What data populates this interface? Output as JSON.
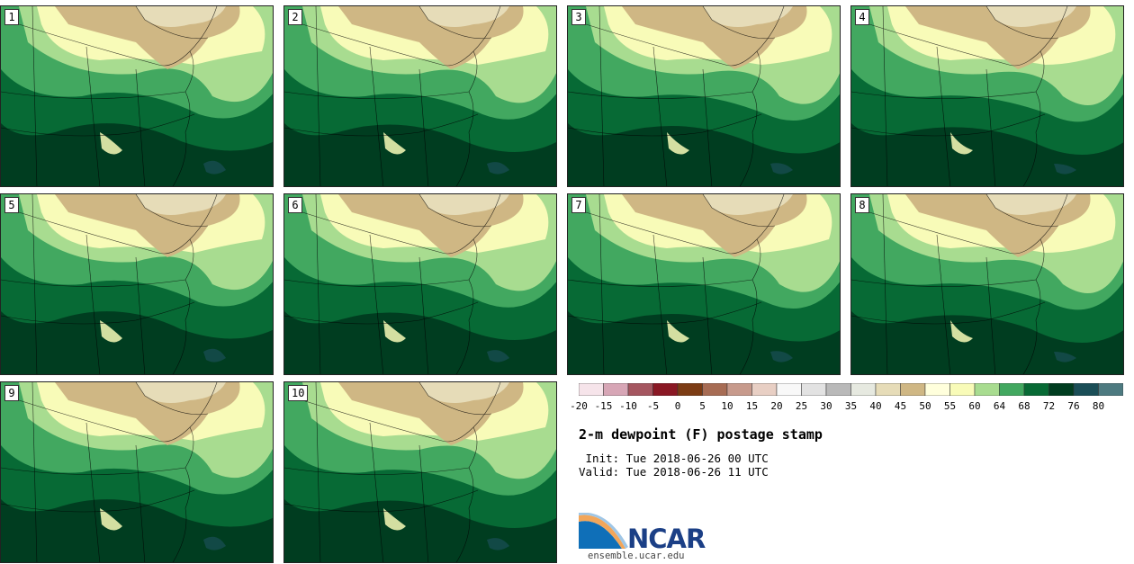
{
  "panels": [
    {
      "number": "1"
    },
    {
      "number": "2"
    },
    {
      "number": "3"
    },
    {
      "number": "4"
    },
    {
      "number": "5"
    },
    {
      "number": "6"
    },
    {
      "number": "7"
    },
    {
      "number": "8"
    },
    {
      "number": "9"
    },
    {
      "number": "10"
    }
  ],
  "colorbar": {
    "ticks": [
      "-20",
      "-15",
      "-10",
      "-5",
      "0",
      "5",
      "10",
      "15",
      "20",
      "25",
      "30",
      "35",
      "40",
      "45",
      "50",
      "55",
      "60",
      "64",
      "68",
      "72",
      "76",
      "80"
    ],
    "colors": [
      "#f6e4ea",
      "#d7a6b6",
      "#a55660",
      "#8a1824",
      "#7c3c14",
      "#a76c54",
      "#c79a8c",
      "#e8cfc4",
      "#f8f8f8",
      "#e2e2e2",
      "#b9b9b9",
      "#e6e9e0",
      "#e6dcb8",
      "#cfb784",
      "#ffffdc",
      "#f8fbb8",
      "#a8dc90",
      "#42a860",
      "#076a35",
      "#003d20",
      "#1a4e57",
      "#4d7a80"
    ]
  },
  "title": "2-m dewpoint (F) postage stamp",
  "init_line": " Init: Tue 2018-06-26 00 UTC",
  "valid_line": "Valid: Tue 2018-06-26 11 UTC",
  "logo": {
    "text": "NCAR",
    "url": "ensemble.ucar.edu"
  },
  "colors": {
    "tan": "#cfb784",
    "light_tan": "#e6dcb8",
    "pale_yellow": "#f8fbb8",
    "light_green": "#a8dc90",
    "mid_green": "#42a860",
    "dark_green": "#076a35",
    "darkest_green": "#003d20",
    "teal": "#1a4e57"
  }
}
